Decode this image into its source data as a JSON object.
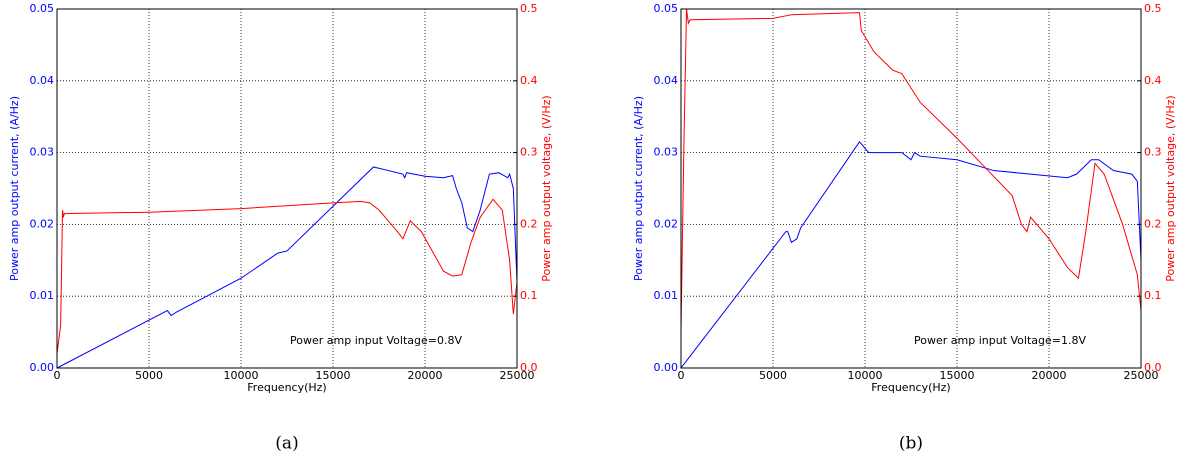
{
  "chart_data": [
    {
      "type": "line",
      "caption": "(a)",
      "xlabel": "Frequency(Hz)",
      "ylabel": "Power amp output  current, (A/Hz)",
      "y2label": "Power amp output voltage, (V/Hz)",
      "annotation": "Power amp input Voltage=0.8V",
      "grid": true,
      "xlim": [
        0,
        25000
      ],
      "xticks": [
        0,
        5000,
        10000,
        15000,
        20000,
        25000
      ],
      "ylim": [
        0,
        0.05
      ],
      "yticks": [
        {
          "value": 0,
          "label": "0.00"
        },
        0.01,
        0.02,
        0.03,
        0.04,
        0.05
      ],
      "y2lim": [
        0,
        0.5
      ],
      "y2ticks": [
        {
          "value": 0,
          "label": "0.0"
        },
        0.1,
        0.2,
        0.3,
        0.4,
        0.5
      ],
      "series": [
        {
          "name": "current",
          "color": "#0000ff",
          "axis": "y",
          "x": [
            0,
            6000,
            6200,
            6500,
            10000,
            12000,
            12500,
            17200,
            18800,
            18900,
            19000,
            20000,
            21000,
            21500,
            21700,
            22000,
            22300,
            22600,
            23000,
            23500,
            24000,
            24500,
            24600,
            24800,
            25000
          ],
          "values": [
            0,
            0.008,
            0.0073,
            0.0078,
            0.0125,
            0.016,
            0.0163,
            0.028,
            0.027,
            0.0265,
            0.0272,
            0.0267,
            0.0265,
            0.0268,
            0.025,
            0.023,
            0.0195,
            0.019,
            0.022,
            0.027,
            0.0272,
            0.0265,
            0.027,
            0.025,
            0.012
          ]
        },
        {
          "name": "voltage",
          "color": "#ff0000",
          "axis": "y2",
          "x": [
            0,
            200,
            300,
            350,
            400,
            5000,
            10000,
            15000,
            16500,
            17000,
            17500,
            18500,
            18800,
            19200,
            19800,
            21000,
            21500,
            22000,
            22500,
            23000,
            23700,
            24200,
            24600,
            24800,
            25000
          ],
          "values": [
            0.02,
            0.06,
            0.22,
            0.21,
            0.215,
            0.217,
            0.222,
            0.23,
            0.232,
            0.23,
            0.22,
            0.19,
            0.18,
            0.205,
            0.19,
            0.135,
            0.128,
            0.13,
            0.175,
            0.21,
            0.235,
            0.22,
            0.15,
            0.075,
            0.12
          ]
        }
      ]
    },
    {
      "type": "line",
      "caption": "(b)",
      "xlabel": "Frequency(Hz)",
      "ylabel": "Power amp output  current, (A/Hz)",
      "y2label": "Power amp output voltage, (V/Hz)",
      "annotation": "Power amp input Voltage=1.8V",
      "grid": true,
      "xlim": [
        0,
        25000
      ],
      "xticks": [
        0,
        5000,
        10000,
        15000,
        20000,
        25000
      ],
      "ylim": [
        0,
        0.05
      ],
      "yticks": [
        {
          "value": 0,
          "label": "0.00"
        },
        0.01,
        0.02,
        0.03,
        0.04,
        0.05
      ],
      "y2lim": [
        0,
        0.5
      ],
      "y2ticks": [
        {
          "value": 0,
          "label": "0.0"
        },
        0.1,
        0.2,
        0.3,
        0.4,
        0.5
      ],
      "series": [
        {
          "name": "current",
          "color": "#0000ff",
          "axis": "y",
          "x": [
            0,
            300,
            5700,
            5800,
            6000,
            6300,
            6500,
            9700,
            10200,
            12000,
            12500,
            12700,
            13000,
            15000,
            17000,
            19000,
            21000,
            21500,
            22300,
            22700,
            23500,
            24500,
            24800,
            25000
          ],
          "values": [
            0,
            0.001,
            0.019,
            0.019,
            0.0175,
            0.018,
            0.0195,
            0.0315,
            0.03,
            0.03,
            0.029,
            0.03,
            0.0295,
            0.029,
            0.0275,
            0.027,
            0.0265,
            0.027,
            0.029,
            0.029,
            0.0275,
            0.027,
            0.026,
            0.015
          ]
        },
        {
          "name": "voltage",
          "color": "#ff0000",
          "axis": "y2",
          "x": [
            0,
            150,
            300,
            400,
            500,
            5000,
            5600,
            6000,
            9700,
            9800,
            10500,
            11500,
            12000,
            13000,
            15000,
            16500,
            18000,
            18500,
            18800,
            19000,
            20000,
            21000,
            21600,
            22000,
            22500,
            23000,
            24000,
            24800,
            25000
          ],
          "values": [
            0.05,
            0.3,
            0.5,
            0.48,
            0.485,
            0.487,
            0.49,
            0.492,
            0.495,
            0.47,
            0.44,
            0.415,
            0.41,
            0.37,
            0.32,
            0.28,
            0.24,
            0.2,
            0.19,
            0.21,
            0.18,
            0.14,
            0.125,
            0.19,
            0.285,
            0.27,
            0.2,
            0.13,
            0.08
          ]
        }
      ]
    }
  ]
}
